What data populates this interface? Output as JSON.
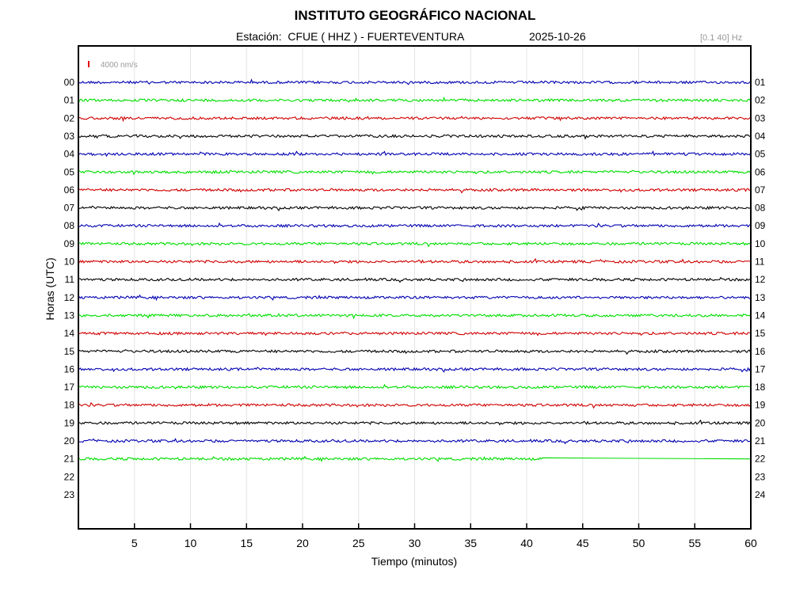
{
  "header": {
    "title": "INSTITUTO GEOGRÁFICO NACIONAL",
    "subtitle": "Estación:  CFUE ( HHZ ) - FUERTEVENTURA",
    "date": "2025-10-26",
    "band": "[0.1 40] Hz"
  },
  "chart_data": {
    "type": "line",
    "xlabel": "Tiempo (minutos)",
    "ylabel": "Horas (UTC)",
    "xlim": [
      0,
      60
    ],
    "xticks": [
      "5",
      "10",
      "15",
      "20",
      "25",
      "30",
      "35",
      "40",
      "45",
      "50",
      "55",
      "60"
    ],
    "left_hour_labels": [
      "00",
      "01",
      "02",
      "03",
      "04",
      "05",
      "06",
      "07",
      "08",
      "09",
      "10",
      "11",
      "12",
      "13",
      "14",
      "15",
      "16",
      "17",
      "18",
      "19",
      "20",
      "21",
      "22",
      "23"
    ],
    "right_hour_labels": [
      "01",
      "02",
      "03",
      "04",
      "05",
      "06",
      "07",
      "08",
      "09",
      "10",
      "11",
      "12",
      "13",
      "14",
      "15",
      "16",
      "17",
      "18",
      "19",
      "20",
      "21",
      "22",
      "23",
      "24"
    ],
    "scale_label": "4000 nm/s",
    "scale_color": "#e00000",
    "trace_colors": [
      "#0000b0",
      "#00dd00",
      "#d00000",
      "#000000"
    ],
    "recorded_hours": 22,
    "last_hour_end_minute": 41.5,
    "grid": true
  }
}
